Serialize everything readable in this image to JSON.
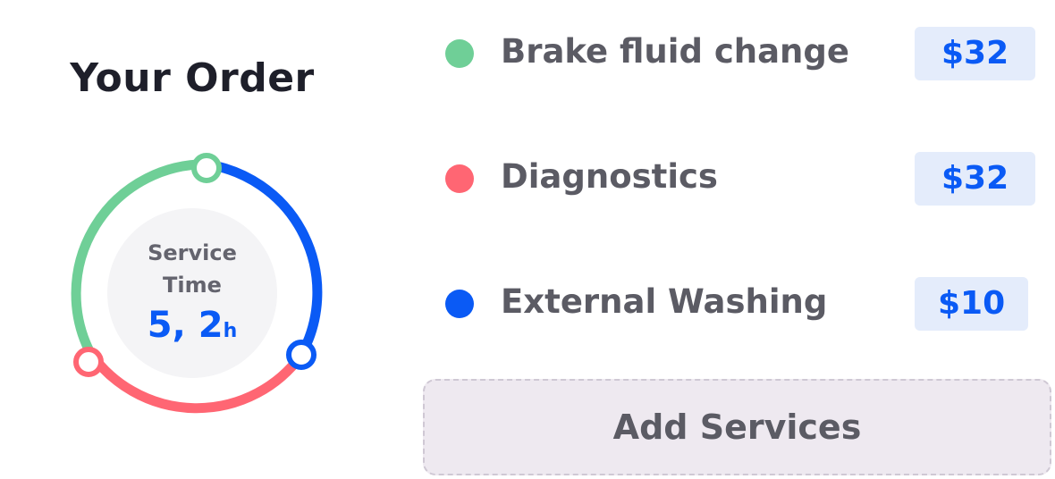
{
  "order": {
    "title": "Your Order",
    "service_time_label_line1": "Service",
    "service_time_label_line2": "Time",
    "service_time_value": "5, 2",
    "service_time_unit": "h"
  },
  "services": [
    {
      "name": "Brake fluid change",
      "price": "$32",
      "color": "#6fcf97"
    },
    {
      "name": "Diagnostics",
      "price": "$32",
      "color": "#ff6673"
    },
    {
      "name": "External Washing",
      "price": "$10",
      "color": "#0a5af5"
    }
  ],
  "actions": {
    "add_services_label": "Add Services"
  },
  "colors": {
    "accent": "#0a5af5",
    "green": "#6fcf97",
    "red": "#ff6673",
    "button_bg": "#eee9f0"
  }
}
